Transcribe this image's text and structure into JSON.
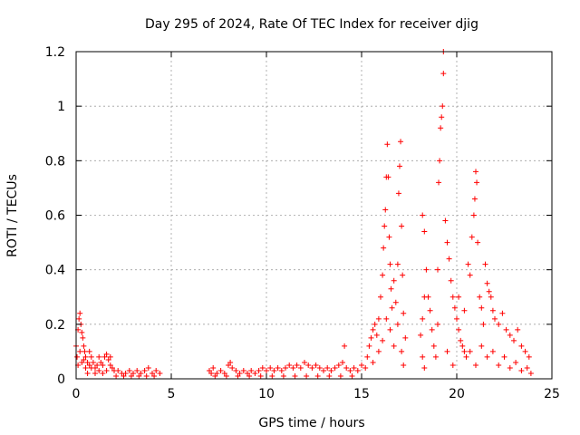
{
  "chart_data": {
    "type": "scatter",
    "title": "Day 295 of 2024, Rate Of TEC Index for receiver djig",
    "xlabel": "GPS time / hours",
    "ylabel": "ROTI / TECUs",
    "xlim": [
      0,
      25
    ],
    "ylim": [
      0,
      1.2
    ],
    "grid": true,
    "marker": "+",
    "color": "#ff0000",
    "x_ticks": [
      {
        "value": 0,
        "label": "0"
      },
      {
        "value": 5,
        "label": "5"
      },
      {
        "value": 10,
        "label": "10"
      },
      {
        "value": 15,
        "label": "15"
      },
      {
        "value": 20,
        "label": "20"
      },
      {
        "value": 25,
        "label": "25"
      }
    ],
    "y_ticks": [
      {
        "value": 0,
        "label": "0"
      },
      {
        "value": 0.2,
        "label": "0.2"
      },
      {
        "value": 0.4,
        "label": "0.4"
      },
      {
        "value": 0.6,
        "label": "0.6"
      },
      {
        "value": 0.8,
        "label": "0.8"
      },
      {
        "value": 1.0,
        "label": "1"
      },
      {
        "value": 1.2,
        "label": "1.2"
      }
    ],
    "series": [
      {
        "points": [
          [
            0.0,
            0.12
          ],
          [
            0.05,
            0.08
          ],
          [
            0.1,
            0.18
          ],
          [
            0.15,
            0.22
          ],
          [
            0.2,
            0.24
          ],
          [
            0.25,
            0.2
          ],
          [
            0.3,
            0.17
          ],
          [
            0.35,
            0.15
          ],
          [
            0.4,
            0.12
          ],
          [
            0.45,
            0.1
          ],
          [
            0.5,
            0.08
          ],
          [
            0.6,
            0.06
          ],
          [
            0.7,
            0.05
          ],
          [
            0.8,
            0.04
          ],
          [
            0.9,
            0.06
          ],
          [
            1.0,
            0.04
          ],
          [
            1.1,
            0.05
          ],
          [
            1.2,
            0.03
          ],
          [
            1.3,
            0.06
          ],
          [
            1.4,
            0.05
          ],
          [
            1.5,
            0.08
          ],
          [
            1.6,
            0.09
          ],
          [
            1.7,
            0.07
          ],
          [
            1.8,
            0.05
          ],
          [
            1.9,
            0.04
          ],
          [
            2.0,
            0.03
          ],
          [
            2.2,
            0.03
          ],
          [
            2.4,
            0.02
          ],
          [
            2.6,
            0.02
          ],
          [
            2.8,
            0.03
          ],
          [
            3.0,
            0.02
          ],
          [
            3.2,
            0.03
          ],
          [
            3.4,
            0.02
          ],
          [
            3.6,
            0.03
          ],
          [
            3.8,
            0.04
          ],
          [
            4.0,
            0.02
          ],
          [
            4.2,
            0.03
          ],
          [
            4.4,
            0.02
          ],
          [
            0.1,
            0.05
          ],
          [
            0.2,
            0.1
          ],
          [
            0.3,
            0.06
          ],
          [
            0.4,
            0.07
          ],
          [
            0.5,
            0.04
          ],
          [
            0.6,
            0.02
          ],
          [
            0.7,
            0.1
          ],
          [
            0.8,
            0.08
          ],
          [
            1.0,
            0.02
          ],
          [
            1.2,
            0.08
          ],
          [
            1.4,
            0.02
          ],
          [
            1.6,
            0.03
          ],
          [
            1.8,
            0.08
          ],
          [
            2.1,
            0.01
          ],
          [
            2.5,
            0.01
          ],
          [
            2.9,
            0.01
          ],
          [
            3.3,
            0.01
          ],
          [
            3.7,
            0.01
          ],
          [
            4.1,
            0.01
          ],
          [
            7.0,
            0.03
          ],
          [
            7.1,
            0.02
          ],
          [
            7.2,
            0.04
          ],
          [
            7.4,
            0.02
          ],
          [
            7.6,
            0.03
          ],
          [
            7.8,
            0.02
          ],
          [
            8.0,
            0.05
          ],
          [
            8.1,
            0.06
          ],
          [
            8.2,
            0.04
          ],
          [
            8.4,
            0.03
          ],
          [
            8.6,
            0.02
          ],
          [
            8.8,
            0.03
          ],
          [
            9.0,
            0.02
          ],
          [
            9.2,
            0.03
          ],
          [
            9.4,
            0.02
          ],
          [
            9.6,
            0.03
          ],
          [
            9.8,
            0.04
          ],
          [
            10.0,
            0.03
          ],
          [
            10.2,
            0.04
          ],
          [
            10.4,
            0.03
          ],
          [
            10.6,
            0.04
          ],
          [
            10.8,
            0.03
          ],
          [
            11.0,
            0.04
          ],
          [
            11.2,
            0.05
          ],
          [
            11.4,
            0.04
          ],
          [
            11.6,
            0.05
          ],
          [
            11.8,
            0.04
          ],
          [
            12.0,
            0.06
          ],
          [
            12.2,
            0.05
          ],
          [
            12.4,
            0.04
          ],
          [
            12.6,
            0.05
          ],
          [
            12.8,
            0.04
          ],
          [
            13.0,
            0.03
          ],
          [
            13.2,
            0.04
          ],
          [
            13.4,
            0.03
          ],
          [
            13.6,
            0.04
          ],
          [
            13.8,
            0.05
          ],
          [
            14.0,
            0.06
          ],
          [
            14.1,
            0.12
          ],
          [
            14.2,
            0.04
          ],
          [
            14.4,
            0.03
          ],
          [
            14.6,
            0.04
          ],
          [
            14.8,
            0.03
          ],
          [
            15.0,
            0.05
          ],
          [
            15.2,
            0.04
          ],
          [
            7.3,
            0.01
          ],
          [
            7.9,
            0.01
          ],
          [
            8.5,
            0.01
          ],
          [
            9.1,
            0.01
          ],
          [
            9.7,
            0.01
          ],
          [
            10.3,
            0.01
          ],
          [
            10.9,
            0.01
          ],
          [
            11.5,
            0.01
          ],
          [
            12.1,
            0.01
          ],
          [
            12.7,
            0.01
          ],
          [
            13.3,
            0.01
          ],
          [
            13.9,
            0.01
          ],
          [
            14.5,
            0.01
          ],
          [
            15.3,
            0.08
          ],
          [
            15.4,
            0.12
          ],
          [
            15.5,
            0.15
          ],
          [
            15.6,
            0.18
          ],
          [
            15.7,
            0.2
          ],
          [
            15.8,
            0.16
          ],
          [
            15.9,
            0.22
          ],
          [
            16.0,
            0.3
          ],
          [
            16.1,
            0.38
          ],
          [
            16.15,
            0.48
          ],
          [
            16.2,
            0.56
          ],
          [
            16.25,
            0.62
          ],
          [
            16.3,
            0.74
          ],
          [
            16.35,
            0.86
          ],
          [
            16.4,
            0.74
          ],
          [
            16.45,
            0.52
          ],
          [
            16.5,
            0.42
          ],
          [
            16.55,
            0.33
          ],
          [
            16.6,
            0.26
          ],
          [
            16.7,
            0.36
          ],
          [
            16.8,
            0.28
          ],
          [
            16.9,
            0.42
          ],
          [
            16.95,
            0.68
          ],
          [
            17.0,
            0.78
          ],
          [
            17.05,
            0.87
          ],
          [
            17.1,
            0.56
          ],
          [
            17.15,
            0.38
          ],
          [
            17.2,
            0.24
          ],
          [
            17.3,
            0.15
          ],
          [
            15.6,
            0.06
          ],
          [
            15.9,
            0.1
          ],
          [
            16.1,
            0.14
          ],
          [
            16.3,
            0.22
          ],
          [
            16.5,
            0.18
          ],
          [
            16.7,
            0.12
          ],
          [
            16.9,
            0.2
          ],
          [
            17.1,
            0.1
          ],
          [
            17.2,
            0.05
          ],
          [
            18.2,
            0.6
          ],
          [
            18.3,
            0.54
          ],
          [
            18.4,
            0.4
          ],
          [
            18.3,
            0.3
          ],
          [
            18.2,
            0.22
          ],
          [
            18.1,
            0.16
          ],
          [
            18.2,
            0.08
          ],
          [
            18.3,
            0.04
          ],
          [
            18.5,
            0.3
          ],
          [
            18.6,
            0.25
          ],
          [
            18.7,
            0.18
          ],
          [
            18.8,
            0.12
          ],
          [
            18.9,
            0.08
          ],
          [
            19.0,
            0.2
          ],
          [
            19.0,
            0.4
          ],
          [
            19.05,
            0.72
          ],
          [
            19.1,
            0.8
          ],
          [
            19.15,
            0.92
          ],
          [
            19.2,
            0.96
          ],
          [
            19.25,
            1.0
          ],
          [
            19.3,
            1.12
          ],
          [
            19.3,
            1.2
          ],
          [
            19.4,
            0.58
          ],
          [
            19.5,
            0.5
          ],
          [
            19.6,
            0.44
          ],
          [
            19.7,
            0.36
          ],
          [
            19.8,
            0.3
          ],
          [
            19.9,
            0.26
          ],
          [
            20.0,
            0.22
          ],
          [
            20.1,
            0.18
          ],
          [
            20.2,
            0.14
          ],
          [
            20.3,
            0.12
          ],
          [
            20.4,
            0.1
          ],
          [
            20.5,
            0.08
          ],
          [
            20.6,
            0.42
          ],
          [
            20.7,
            0.38
          ],
          [
            20.8,
            0.52
          ],
          [
            20.9,
            0.6
          ],
          [
            20.95,
            0.66
          ],
          [
            21.0,
            0.76
          ],
          [
            21.05,
            0.72
          ],
          [
            21.1,
            0.5
          ],
          [
            21.2,
            0.3
          ],
          [
            21.3,
            0.26
          ],
          [
            21.4,
            0.2
          ],
          [
            21.5,
            0.42
          ],
          [
            21.6,
            0.35
          ],
          [
            21.7,
            0.32
          ],
          [
            21.8,
            0.3
          ],
          [
            21.9,
            0.25
          ],
          [
            22.0,
            0.22
          ],
          [
            22.2,
            0.2
          ],
          [
            22.4,
            0.24
          ],
          [
            22.6,
            0.18
          ],
          [
            22.8,
            0.16
          ],
          [
            23.0,
            0.14
          ],
          [
            23.2,
            0.18
          ],
          [
            23.4,
            0.12
          ],
          [
            23.6,
            0.1
          ],
          [
            23.8,
            0.08
          ],
          [
            19.5,
            0.1
          ],
          [
            19.8,
            0.05
          ],
          [
            20.1,
            0.3
          ],
          [
            20.4,
            0.25
          ],
          [
            20.7,
            0.1
          ],
          [
            21.0,
            0.05
          ],
          [
            21.3,
            0.12
          ],
          [
            21.6,
            0.08
          ],
          [
            21.9,
            0.1
          ],
          [
            22.2,
            0.05
          ],
          [
            22.5,
            0.08
          ],
          [
            22.8,
            0.04
          ],
          [
            23.1,
            0.06
          ],
          [
            23.4,
            0.03
          ],
          [
            23.7,
            0.04
          ],
          [
            23.9,
            0.02
          ]
        ]
      }
    ]
  }
}
